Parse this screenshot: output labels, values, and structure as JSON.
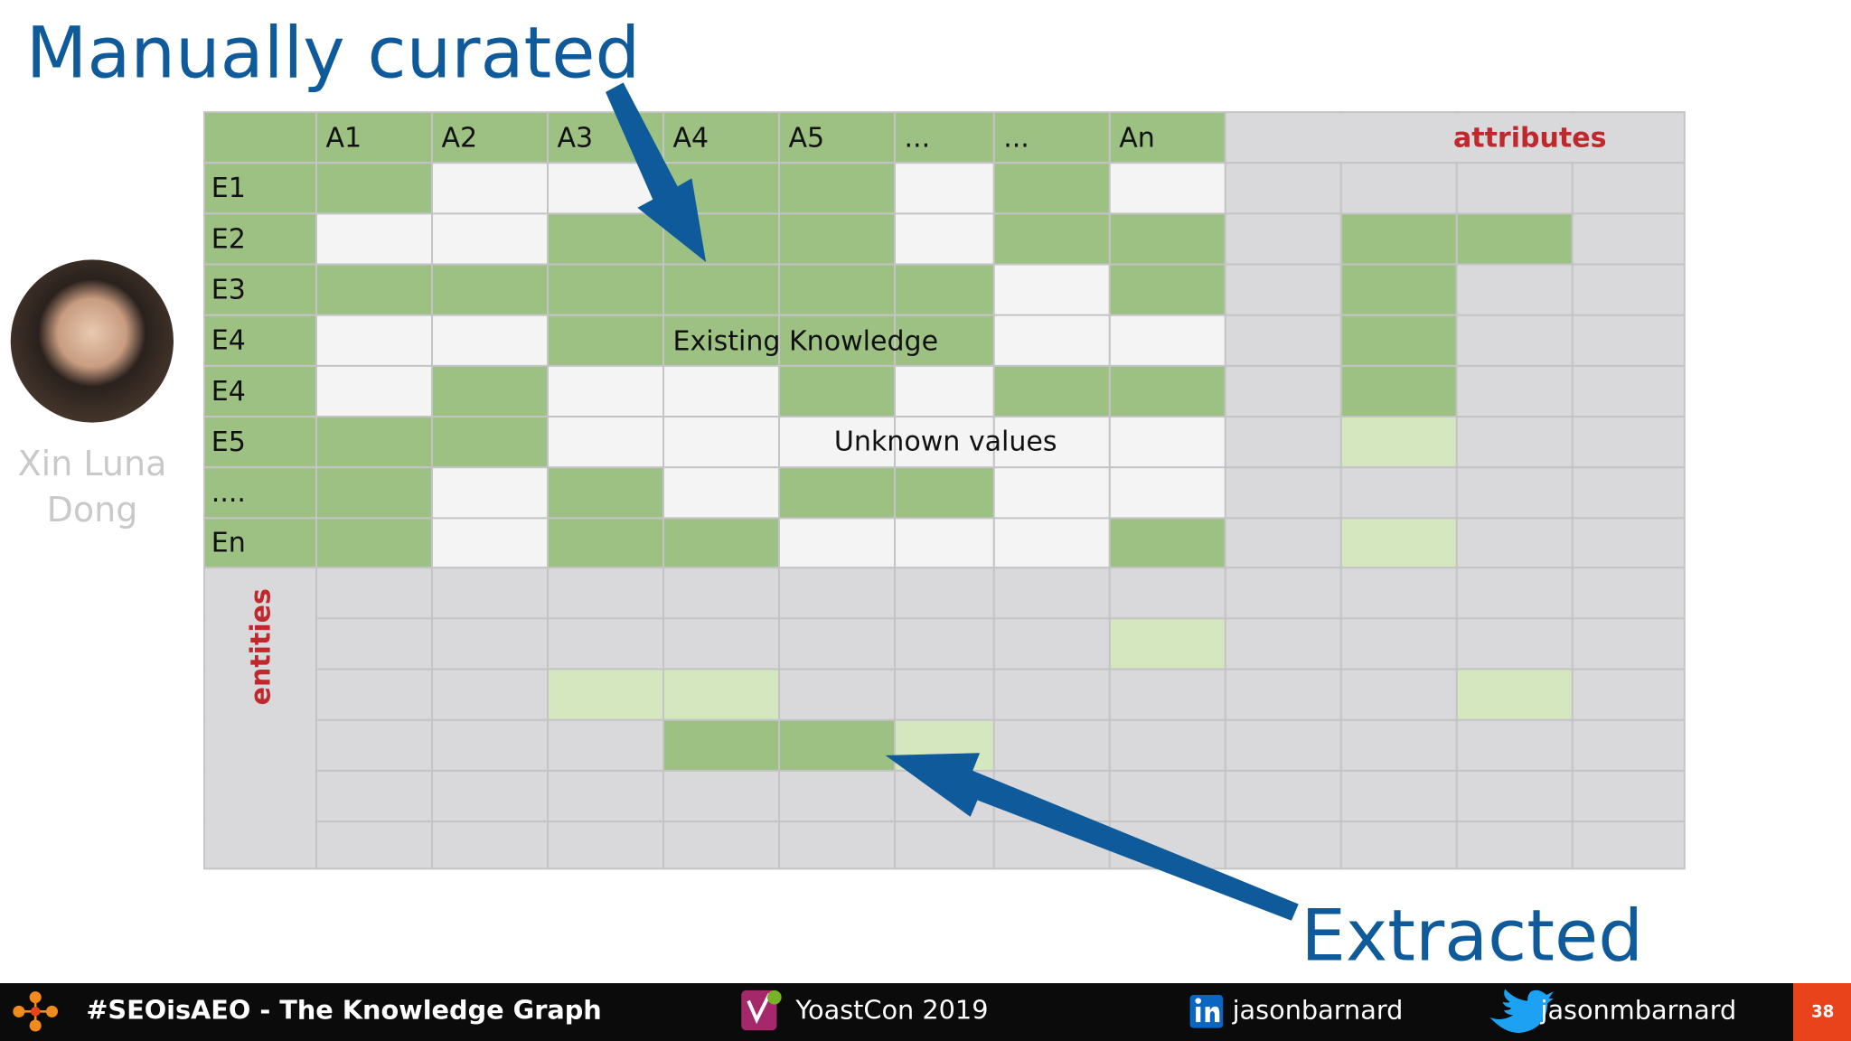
{
  "title": "Manually curated",
  "callout": "Extracted",
  "table": {
    "columns": [
      "A1",
      "A2",
      "A3",
      "A4",
      "A5",
      "...",
      "...",
      "An"
    ],
    "rows": [
      "E1",
      "E2",
      "E3",
      "E4",
      "E4",
      "E5",
      "....",
      "En"
    ],
    "attributes_label": "attributes",
    "entities_label": "entities",
    "existing_label": "Existing Knowledge",
    "unknown_label": "Unknown values"
  },
  "speaker": "Xin Luna Dong",
  "footer": {
    "hashtag": "#SEOisAEO - The Knowledge Graph",
    "event": "YoastCon 2019",
    "linkedin": "jasonbarnard",
    "twitter": "jasonmbarnard",
    "page": "38"
  }
}
